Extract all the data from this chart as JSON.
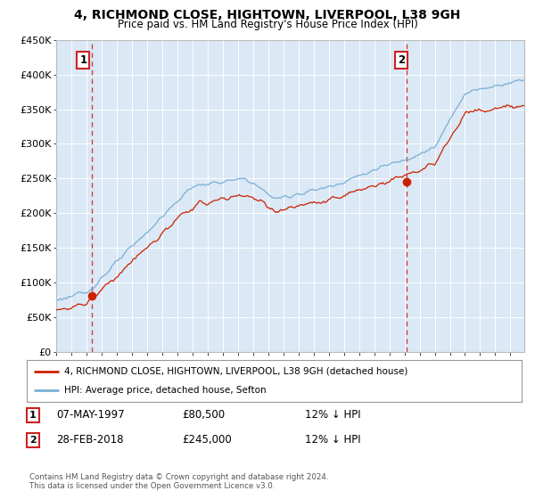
{
  "title": "4, RICHMOND CLOSE, HIGHTOWN, LIVERPOOL, L38 9GH",
  "subtitle": "Price paid vs. HM Land Registry's House Price Index (HPI)",
  "ylim": [
    0,
    450000
  ],
  "yticks": [
    0,
    50000,
    100000,
    150000,
    200000,
    250000,
    300000,
    350000,
    400000,
    450000
  ],
  "sale1_year": 1997.35,
  "sale1_price": 80500,
  "sale2_year": 2018.17,
  "sale2_price": 245000,
  "sale1_date": "07-MAY-1997",
  "sale1_amount": "£80,500",
  "sale1_hpi": "12% ↓ HPI",
  "sale2_date": "28-FEB-2018",
  "sale2_amount": "£245,000",
  "sale2_hpi": "12% ↓ HPI",
  "legend_line1": "4, RICHMOND CLOSE, HIGHTOWN, LIVERPOOL, L38 9GH (detached house)",
  "legend_line2": "HPI: Average price, detached house, Sefton",
  "footer": "Contains HM Land Registry data © Crown copyright and database right 2024.\nThis data is licensed under the Open Government Licence v3.0.",
  "hpi_color": "#7aafd4",
  "price_color": "#cc2200",
  "dot_color": "#cc2200",
  "vline_color": "#cc4444",
  "plot_bg": "#dbe8f5",
  "grid_color": "#ffffff"
}
